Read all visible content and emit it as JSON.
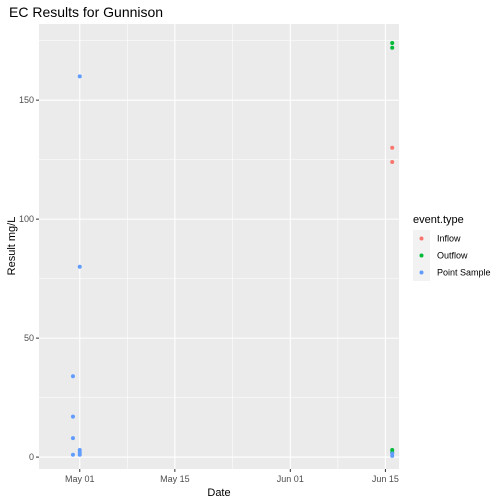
{
  "chart_data": {
    "type": "scatter",
    "title": "EC Results for Gunnison",
    "xlabel": "Date",
    "ylabel": "Result mg/L",
    "x_type": "date",
    "xlim": [
      "2023-04-25",
      "2023-06-17"
    ],
    "ylim": [
      -5,
      182
    ],
    "x_ticks": [
      {
        "value": "2023-05-01",
        "label": "May 01"
      },
      {
        "value": "2023-05-15",
        "label": "May 15"
      },
      {
        "value": "2023-06-01",
        "label": "Jun 01"
      },
      {
        "value": "2023-06-15",
        "label": "Jun 15"
      }
    ],
    "y_ticks": [
      0,
      50,
      100,
      150
    ],
    "grid": true,
    "legend": {
      "title": "event.type",
      "position": "right"
    },
    "series": [
      {
        "name": "Inflow",
        "color": "#F8766D",
        "points": [
          {
            "x": "2023-06-16",
            "y": 130
          },
          {
            "x": "2023-06-16",
            "y": 124
          }
        ]
      },
      {
        "name": "Outflow",
        "color": "#00BA38",
        "points": [
          {
            "x": "2023-06-16",
            "y": 174
          },
          {
            "x": "2023-06-16",
            "y": 172
          },
          {
            "x": "2023-06-16",
            "y": 3
          },
          {
            "x": "2023-06-16",
            "y": 2
          }
        ]
      },
      {
        "name": "Point Sample",
        "color": "#619CFF",
        "points": [
          {
            "x": "2023-04-30",
            "y": 34
          },
          {
            "x": "2023-04-30",
            "y": 17
          },
          {
            "x": "2023-04-30",
            "y": 8
          },
          {
            "x": "2023-04-30",
            "y": 1
          },
          {
            "x": "2023-05-01",
            "y": 160
          },
          {
            "x": "2023-05-01",
            "y": 80
          },
          {
            "x": "2023-05-01",
            "y": 3
          },
          {
            "x": "2023-05-01",
            "y": 2
          },
          {
            "x": "2023-05-01",
            "y": 1
          },
          {
            "x": "2023-06-16",
            "y": 1.5
          },
          {
            "x": "2023-06-16",
            "y": 0.5
          }
        ]
      }
    ]
  }
}
